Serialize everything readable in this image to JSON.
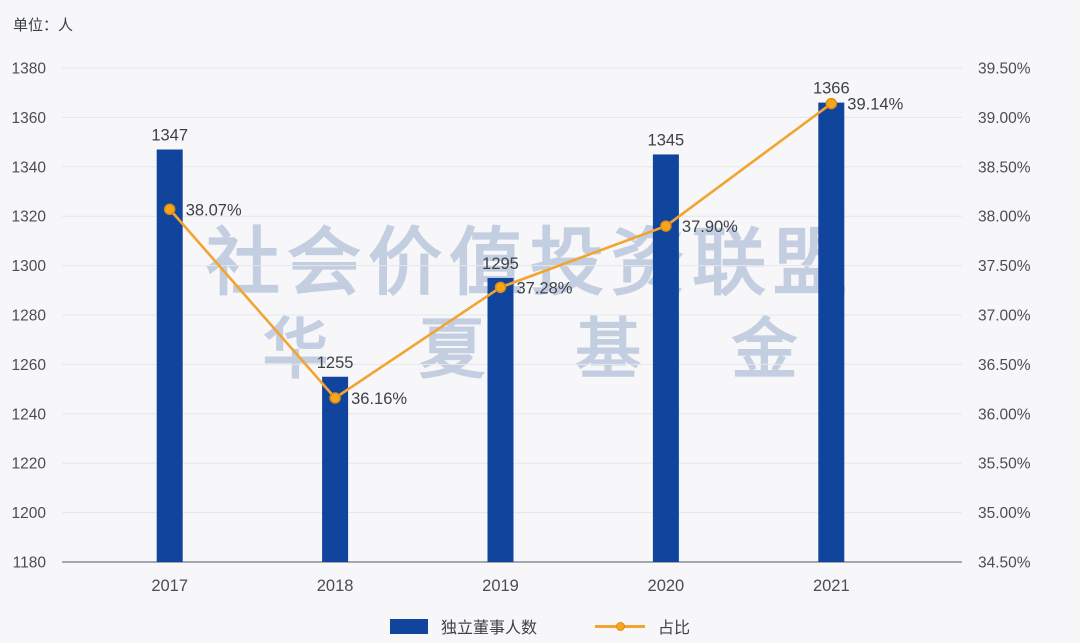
{
  "unit_label": "单位：人",
  "watermark": {
    "line1": "社会价值投资联盟",
    "line2": "华 夏 基 金"
  },
  "legend": {
    "items": [
      {
        "label": "独立董事人数",
        "type": "bar"
      },
      {
        "label": "占比",
        "type": "line"
      }
    ]
  },
  "colors": {
    "bar": "#11449d",
    "line": "#f2a430",
    "marker_fill": "#f6a61e",
    "marker_stroke": "#e08c0d",
    "grid": "#e5e7ea",
    "axis_line": "#878d96",
    "tick_text": "#494d55",
    "label_text": "#3d4149",
    "background": "#f7f7f9",
    "watermark": "#bfcadf"
  },
  "chart_data": {
    "type": "bar+line",
    "categories": [
      "2017",
      "2018",
      "2019",
      "2020",
      "2021"
    ],
    "series": [
      {
        "name": "独立董事人数",
        "type": "bar",
        "axis": "left",
        "values": [
          1347,
          1255,
          1295,
          1345,
          1366
        ],
        "labels": [
          "1347",
          "1255",
          "1295",
          "1345",
          "1366"
        ]
      },
      {
        "name": "占比",
        "type": "line",
        "axis": "right",
        "values": [
          38.07,
          36.16,
          37.28,
          37.9,
          39.14
        ],
        "labels": [
          "38.07%",
          "36.16%",
          "37.28%",
          "37.90%",
          "39.14%"
        ]
      }
    ],
    "left_axis": {
      "min": 1180,
      "max": 1380,
      "step": 20,
      "ticks": [
        "1380",
        "1360",
        "1340",
        "1320",
        "1300",
        "1280",
        "1260",
        "1240",
        "1220",
        "1200",
        "1180"
      ]
    },
    "right_axis": {
      "min": 34.5,
      "max": 39.5,
      "step": 0.5,
      "ticks": [
        "39.50%",
        "39.00%",
        "38.50%",
        "38.00%",
        "37.50%",
        "37.00%",
        "36.50%",
        "36.00%",
        "35.50%",
        "35.00%",
        "34.50%"
      ]
    },
    "grid": true,
    "legend_position": "bottom"
  }
}
